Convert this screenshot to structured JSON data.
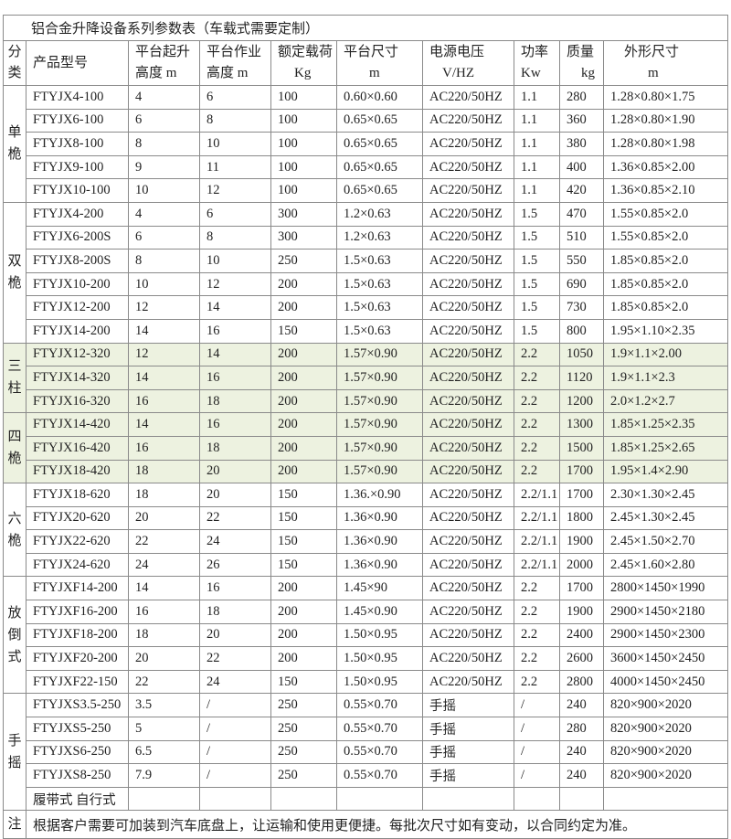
{
  "title": "铝合金升降设备系列参数表（车载式需要定制）",
  "headers": {
    "category": [
      "分",
      "类"
    ],
    "model": "产品型号",
    "lift": [
      "平台起升",
      "高度 m"
    ],
    "work": [
      "平台作业",
      "高度 m"
    ],
    "load": [
      "额定载荷",
      "Kg"
    ],
    "platform": [
      "平台尺寸",
      "m"
    ],
    "power_supply": [
      "电源电压",
      "V/HZ"
    ],
    "power": [
      "功率",
      "Kw"
    ],
    "mass": [
      "质量",
      "kg"
    ],
    "dims": [
      "外形尺寸",
      "m"
    ]
  },
  "highlight_color": "#edf2e0",
  "groups": [
    {
      "category": [
        "单",
        "桅"
      ],
      "highlight": false,
      "rows": [
        [
          "FTYJX4-100",
          "4",
          "6",
          "100",
          "0.60×0.60",
          "AC220/50HZ",
          "1.1",
          "280",
          "1.28×0.80×1.75"
        ],
        [
          "FTYJX6-100",
          "6",
          "8",
          "100",
          "0.65×0.65",
          "AC220/50HZ",
          "1.1",
          "360",
          "1.28×0.80×1.90"
        ],
        [
          "FTYJX8-100",
          "8",
          "10",
          "100",
          "0.65×0.65",
          "AC220/50HZ",
          "1.1",
          "380",
          "1.28×0.80×1.98"
        ],
        [
          "FTYJX9-100",
          "9",
          "11",
          "100",
          "0.65×0.65",
          "AC220/50HZ",
          "1.1",
          "400",
          "1.36×0.85×2.00"
        ],
        [
          "FTYJX10-100",
          "10",
          "12",
          "100",
          "0.65×0.65",
          "AC220/50HZ",
          "1.1",
          "420",
          "1.36×0.85×2.10"
        ]
      ]
    },
    {
      "category": [
        "双",
        "桅"
      ],
      "highlight": false,
      "rows": [
        [
          "FTYJX4-200",
          "4",
          "6",
          "300",
          "1.2×0.63",
          "AC220/50HZ",
          "1.5",
          "470",
          "1.55×0.85×2.0"
        ],
        [
          "FTYJX6-200S",
          "6",
          "8",
          "300",
          "1.2×0.63",
          "AC220/50HZ",
          "1.5",
          "510",
          "1.55×0.85×2.0"
        ],
        [
          "FTYJX8-200S",
          "8",
          "10",
          "250",
          "1.5×0.63",
          "AC220/50HZ",
          "1.5",
          "550",
          "1.85×0.85×2.0"
        ],
        [
          "FTYJX10-200",
          "10",
          "12",
          "200",
          "1.5×0.63",
          "AC220/50HZ",
          "1.5",
          "690",
          "1.85×0.85×2.0"
        ],
        [
          "FTYJX12-200",
          "12",
          "14",
          "200",
          "1.5×0.63",
          "AC220/50HZ",
          "1.5",
          "730",
          "1.85×0.85×2.0"
        ],
        [
          "FTYJX14-200",
          "14",
          "16",
          "150",
          "1.5×0.63",
          "AC220/50HZ",
          "1.5",
          "800",
          "1.95×1.10×2.35"
        ]
      ]
    },
    {
      "category": [
        "三",
        "柱"
      ],
      "highlight": true,
      "rows": [
        [
          "FTYJX12-320",
          "12",
          "14",
          "200",
          "1.57×0.90",
          "AC220/50HZ",
          "2.2",
          "1050",
          "1.9×1.1×2.00"
        ],
        [
          "FTYJX14-320",
          "14",
          "16",
          "200",
          "1.57×0.90",
          "AC220/50HZ",
          "2.2",
          "1120",
          "1.9×1.1×2.3"
        ],
        [
          "FTYJX16-320",
          "16",
          "18",
          "200",
          "1.57×0.90",
          "AC220/50HZ",
          "2.2",
          "1200",
          "2.0×1.2×2.7"
        ]
      ]
    },
    {
      "category": [
        "四",
        "桅"
      ],
      "highlight": true,
      "rows": [
        [
          "FTYJX14-420",
          "14",
          "16",
          "200",
          "1.57×0.90",
          "AC220/50HZ",
          "2.2",
          "1300",
          "1.85×1.25×2.35"
        ],
        [
          "FTYJX16-420",
          "16",
          "18",
          "200",
          "1.57×0.90",
          "AC220/50HZ",
          "2.2",
          "1500",
          "1.85×1.25×2.65"
        ],
        [
          "FTYJX18-420",
          "18",
          "20",
          "200",
          "1.57×0.90",
          "AC220/50HZ",
          "2.2",
          "1700",
          "1.95×1.4×2.90"
        ]
      ]
    },
    {
      "category": [
        "六",
        "桅"
      ],
      "highlight": false,
      "rows": [
        [
          "FTYJX18-620",
          "18",
          "20",
          "150",
          "1.36.×0.90",
          "AC220/50HZ",
          "2.2/1.1",
          "1700",
          "2.30×1.30×2.45"
        ],
        [
          "FTYJX20-620",
          "20",
          "22",
          "150",
          "1.36×0.90",
          "AC220/50HZ",
          "2.2/1.1",
          "1800",
          "2.45×1.30×2.45"
        ],
        [
          "FTYJX22-620",
          "22",
          "24",
          "150",
          "1.36×0.90",
          "AC220/50HZ",
          "2.2/1.1",
          "1900",
          "2.45×1.50×2.70"
        ],
        [
          "FTYJX24-620",
          "24",
          "26",
          "150",
          "1.36×0.90",
          "AC220/50HZ",
          "2.2/1.1",
          "2000",
          "2.45×1.60×2.80"
        ]
      ]
    },
    {
      "category": [
        "放",
        "倒",
        "式"
      ],
      "highlight": false,
      "rows": [
        [
          "FTYJXF14-200",
          "14",
          "16",
          "200",
          "1.45×90",
          "AC220/50HZ",
          "2.2",
          "1700",
          "2800×1450×1990"
        ],
        [
          "FTYJXF16-200",
          "16",
          "18",
          "200",
          "1.45×0.90",
          "AC220/50HZ",
          "2.2",
          "1900",
          "2900×1450×2180"
        ],
        [
          "FTYJXF18-200",
          "18",
          "20",
          "200",
          "1.50×0.95",
          "AC220/50HZ",
          "2.2",
          "2400",
          "2900×1450×2300"
        ],
        [
          "FTYJXF20-200",
          "20",
          "22",
          "200",
          "1.50×0.95",
          "AC220/50HZ",
          "2.2",
          "2600",
          "3600×1450×2450"
        ],
        [
          "FTYJXF22-150",
          "22",
          "24",
          "150",
          "1.50×0.95",
          "AC220/50HZ",
          "2.2",
          "2800",
          "4000×1450×2450"
        ]
      ]
    },
    {
      "category": [
        "手",
        "摇"
      ],
      "highlight": false,
      "rows": [
        [
          "FTYJXS3.5-250",
          "3.5",
          "/",
          "250",
          "0.55×0.70",
          "手摇",
          "/",
          "240",
          "820×900×2020"
        ],
        [
          "FTYJXS5-250",
          "5",
          "/",
          "250",
          "0.55×0.70",
          "手摇",
          "/",
          "280",
          "820×900×2020"
        ],
        [
          "FTYJXS6-250",
          "6.5",
          "/",
          "250",
          "0.55×0.70",
          "手摇",
          "/",
          "240",
          "820×900×2020"
        ],
        [
          "FTYJXS8-250",
          "7.9",
          "/",
          "250",
          "0.55×0.70",
          "手摇",
          "/",
          "240",
          "820×900×2020"
        ],
        [
          "履带式 自行式",
          "",
          "",
          "",
          "",
          "",
          "",
          "",
          ""
        ]
      ]
    }
  ],
  "note": {
    "label": "注",
    "text": "根据客户需要可加装到汽车底盘上，让运输和使用更便捷。每批次尺寸如有变动，以合同约定为准。"
  }
}
